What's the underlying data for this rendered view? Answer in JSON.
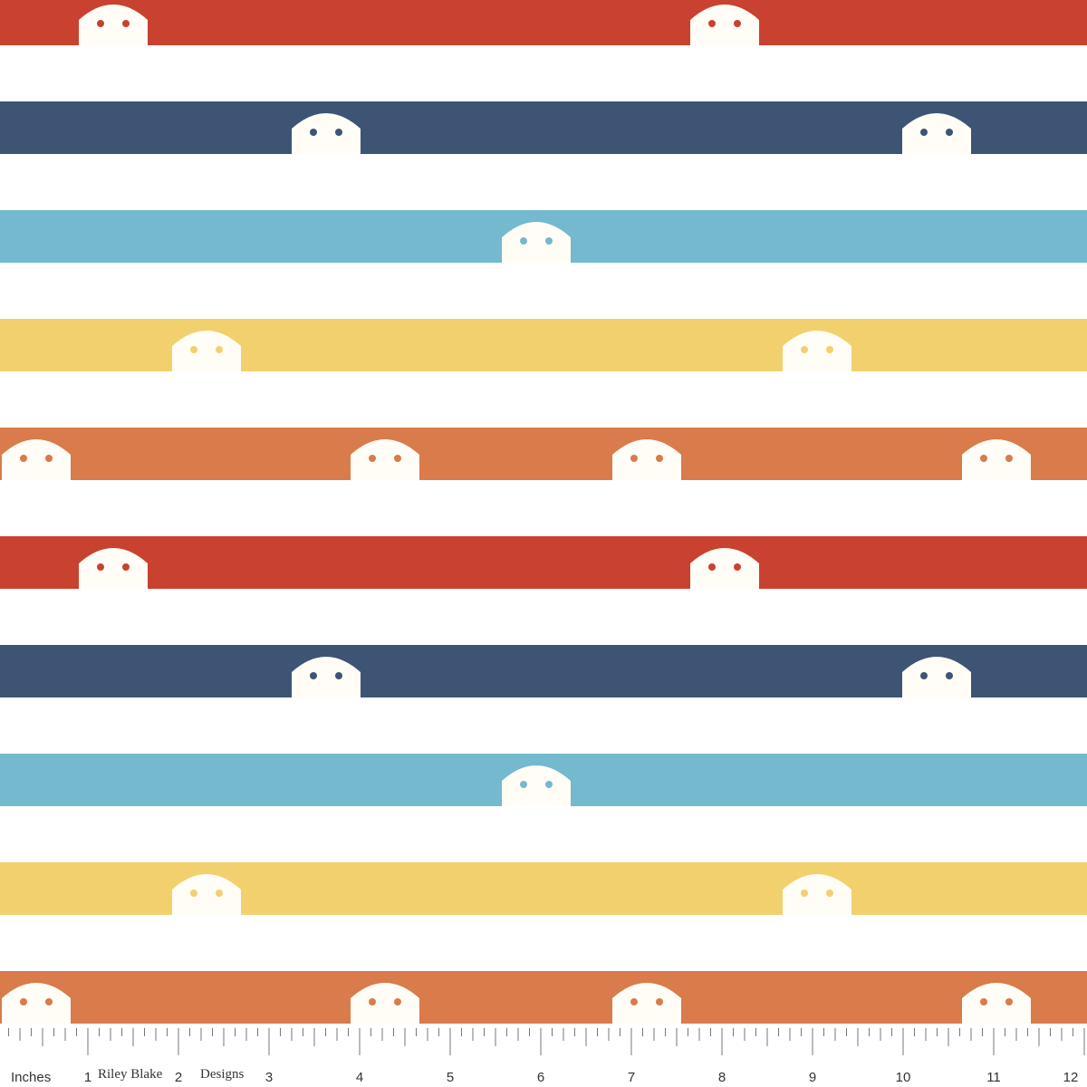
{
  "ruler": {
    "unit_label": "Inches",
    "numbers": [
      "1",
      "2",
      "3",
      "4",
      "5",
      "6",
      "7",
      "8",
      "9",
      "10",
      "11",
      "12"
    ],
    "brand": [
      "Riley Blake",
      "Designs"
    ]
  }
}
